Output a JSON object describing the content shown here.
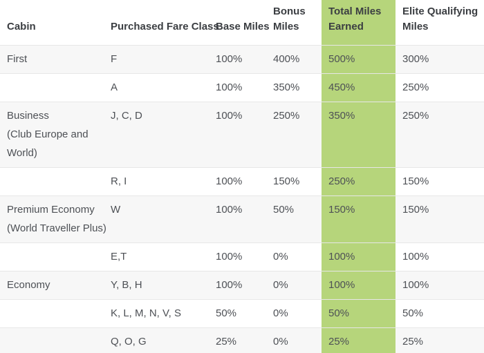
{
  "colors": {
    "highlight_green": "#b6d57b",
    "row_alternate_bg": "#f7f7f7",
    "row_bg": "#ffffff",
    "separator": "#e7e7e7",
    "table_bottom_border": "#cccccc",
    "header_text": "#3b3e42",
    "body_text": "#4d5055"
  },
  "table": {
    "columns": [
      {
        "key": "cabin",
        "label": "Cabin",
        "lines": [
          "Cabin"
        ],
        "highlight": false
      },
      {
        "key": "fare",
        "label": "Purchased Fare Class",
        "lines": [
          "Purchased Fare Class"
        ],
        "highlight": false
      },
      {
        "key": "base",
        "label": "Base Miles",
        "lines": [
          "Base Miles"
        ],
        "highlight": false
      },
      {
        "key": "bonus",
        "label": "Bonus Miles",
        "lines": [
          "Bonus",
          "Miles"
        ],
        "highlight": false
      },
      {
        "key": "total",
        "label": "Total Miles Earned",
        "lines": [
          "Total Miles",
          "Earned"
        ],
        "highlight": true
      },
      {
        "key": "elite",
        "label": "Elite Qualifying Miles",
        "lines": [
          "Elite Qualifying",
          "Miles"
        ],
        "highlight": false
      }
    ],
    "rows": [
      {
        "cabin": [
          "First"
        ],
        "fare": "F",
        "base": "100%",
        "bonus": "400%",
        "total": "500%",
        "elite": "300%"
      },
      {
        "cabin": [],
        "fare": "A",
        "base": "100%",
        "bonus": "350%",
        "total": "450%",
        "elite": "250%"
      },
      {
        "cabin": [
          "Business",
          "(Club Europe and",
          "World)"
        ],
        "fare": "J, C, D",
        "base": "100%",
        "bonus": "250%",
        "total": "350%",
        "elite": "250%"
      },
      {
        "cabin": [],
        "fare": "R, I",
        "base": "100%",
        "bonus": "150%",
        "total": "250%",
        "elite": "150%"
      },
      {
        "cabin": [
          "Premium Economy",
          "(World Traveller Plus)"
        ],
        "fare": "W",
        "base": "100%",
        "bonus": "50%",
        "total": "150%",
        "elite": "150%"
      },
      {
        "cabin": [],
        "fare": "E,T",
        "base": "100%",
        "bonus": "0%",
        "total": "100%",
        "elite": "100%"
      },
      {
        "cabin": [
          "Economy"
        ],
        "fare": "Y, B, H",
        "base": "100%",
        "bonus": "0%",
        "total": "100%",
        "elite": "100%"
      },
      {
        "cabin": [],
        "fare": "K, L, M, N, V, S",
        "base": "50%",
        "bonus": "0%",
        "total": "50%",
        "elite": "50%"
      },
      {
        "cabin": [],
        "fare": "Q, O, G",
        "base": "25%",
        "bonus": "0%",
        "total": "25%",
        "elite": "25%"
      }
    ]
  }
}
